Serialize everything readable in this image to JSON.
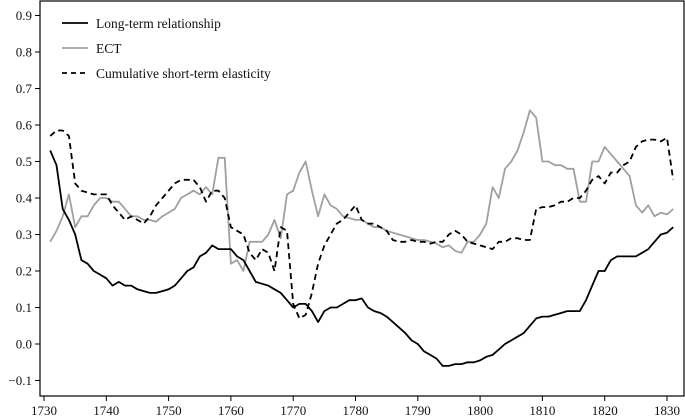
{
  "chart_data": {
    "type": "line",
    "title": "",
    "xlabel": "",
    "ylabel": "",
    "xlim": [
      1727,
      1833
    ],
    "ylim": [
      -0.14,
      0.94
    ],
    "grid": false,
    "legend_position": "upper left",
    "x_ticks": [
      1730,
      1740,
      1750,
      1760,
      1770,
      1780,
      1790,
      1800,
      1810,
      1820,
      1830
    ],
    "x_tick_labels": [
      "1730",
      "1740",
      "1750",
      "1760",
      "1770",
      "1780",
      "1790",
      "1800",
      "1810",
      "1820",
      "1830"
    ],
    "y_ticks": [
      -0.1,
      0.0,
      0.1,
      0.2,
      0.3,
      0.4,
      0.5,
      0.6,
      0.7,
      0.8,
      0.9
    ],
    "y_tick_labels": [
      "−0.1",
      "0.0",
      "0.1",
      "0.2",
      "0.3",
      "0.4",
      "0.5",
      "0.6",
      "0.7",
      "0.8",
      "0.9"
    ],
    "series": [
      {
        "name": "Long-term relationship",
        "style": "solid",
        "color": "#000000",
        "x": [
          1731,
          1732,
          1733,
          1734,
          1735,
          1736,
          1737,
          1738,
          1739,
          1740,
          1741,
          1742,
          1743,
          1744,
          1745,
          1746,
          1747,
          1748,
          1749,
          1750,
          1751,
          1752,
          1753,
          1754,
          1755,
          1756,
          1757,
          1758,
          1759,
          1760,
          1761,
          1762,
          1763,
          1764,
          1765,
          1766,
          1767,
          1768,
          1769,
          1770,
          1771,
          1772,
          1773,
          1774,
          1775,
          1776,
          1777,
          1778,
          1779,
          1780,
          1781,
          1782,
          1783,
          1784,
          1785,
          1786,
          1787,
          1788,
          1789,
          1790,
          1791,
          1792,
          1793,
          1794,
          1795,
          1796,
          1797,
          1798,
          1799,
          1800,
          1801,
          1802,
          1803,
          1804,
          1805,
          1806,
          1807,
          1808,
          1809,
          1810,
          1811,
          1812,
          1813,
          1814,
          1815,
          1816,
          1817,
          1818,
          1819,
          1820,
          1821,
          1822,
          1823,
          1824,
          1825,
          1826,
          1827,
          1828,
          1829,
          1830,
          1831
        ],
        "values": [
          0.53,
          0.49,
          0.37,
          0.34,
          0.3,
          0.23,
          0.22,
          0.2,
          0.19,
          0.18,
          0.16,
          0.17,
          0.16,
          0.16,
          0.15,
          0.145,
          0.14,
          0.14,
          0.145,
          0.15,
          0.16,
          0.18,
          0.2,
          0.21,
          0.24,
          0.25,
          0.27,
          0.26,
          0.26,
          0.26,
          0.24,
          0.23,
          0.2,
          0.17,
          0.165,
          0.16,
          0.15,
          0.14,
          0.12,
          0.1,
          0.11,
          0.11,
          0.09,
          0.06,
          0.09,
          0.1,
          0.1,
          0.11,
          0.12,
          0.12,
          0.125,
          0.1,
          0.09,
          0.085,
          0.075,
          0.06,
          0.045,
          0.03,
          0.01,
          0.0,
          -0.02,
          -0.03,
          -0.04,
          -0.06,
          -0.06,
          -0.055,
          -0.055,
          -0.05,
          -0.05,
          -0.045,
          -0.035,
          -0.03,
          -0.015,
          0.0,
          0.01,
          0.02,
          0.03,
          0.05,
          0.07,
          0.075,
          0.075,
          0.08,
          0.085,
          0.09,
          0.09,
          0.09,
          0.12,
          0.16,
          0.2,
          0.2,
          0.23,
          0.24,
          0.24,
          0.24,
          0.24,
          0.25,
          0.26,
          0.28,
          0.3,
          0.305,
          0.32
        ]
      },
      {
        "name": "ECT",
        "style": "solid",
        "color": "#a0a0a0",
        "x": [
          1731,
          1732,
          1733,
          1734,
          1735,
          1736,
          1737,
          1738,
          1739,
          1740,
          1741,
          1742,
          1743,
          1744,
          1745,
          1746,
          1747,
          1748,
          1749,
          1750,
          1751,
          1752,
          1753,
          1754,
          1755,
          1756,
          1757,
          1758,
          1759,
          1760,
          1761,
          1762,
          1763,
          1764,
          1765,
          1766,
          1767,
          1768,
          1769,
          1770,
          1771,
          1772,
          1773,
          1774,
          1775,
          1776,
          1777,
          1778,
          1779,
          1780,
          1781,
          1782,
          1783,
          1784,
          1785,
          1786,
          1787,
          1788,
          1789,
          1790,
          1791,
          1792,
          1793,
          1794,
          1795,
          1796,
          1797,
          1798,
          1799,
          1800,
          1801,
          1802,
          1803,
          1804,
          1805,
          1806,
          1807,
          1808,
          1809,
          1810,
          1811,
          1812,
          1813,
          1814,
          1815,
          1816,
          1817,
          1818,
          1819,
          1820,
          1821,
          1822,
          1823,
          1824,
          1825,
          1826,
          1827,
          1828,
          1829,
          1830,
          1831
        ],
        "values": [
          0.28,
          0.31,
          0.35,
          0.41,
          0.32,
          0.35,
          0.35,
          0.38,
          0.4,
          0.4,
          0.39,
          0.39,
          0.37,
          0.35,
          0.35,
          0.34,
          0.34,
          0.335,
          0.35,
          0.36,
          0.37,
          0.4,
          0.41,
          0.42,
          0.41,
          0.43,
          0.41,
          0.51,
          0.51,
          0.22,
          0.23,
          0.2,
          0.28,
          0.28,
          0.28,
          0.3,
          0.34,
          0.29,
          0.41,
          0.42,
          0.47,
          0.5,
          0.42,
          0.35,
          0.41,
          0.38,
          0.37,
          0.35,
          0.345,
          0.34,
          0.34,
          0.33,
          0.32,
          0.32,
          0.31,
          0.305,
          0.3,
          0.295,
          0.29,
          0.285,
          0.285,
          0.28,
          0.275,
          0.265,
          0.27,
          0.255,
          0.25,
          0.28,
          0.28,
          0.3,
          0.33,
          0.43,
          0.4,
          0.48,
          0.5,
          0.53,
          0.58,
          0.64,
          0.62,
          0.5,
          0.5,
          0.49,
          0.49,
          0.48,
          0.48,
          0.39,
          0.39,
          0.5,
          0.5,
          0.54,
          0.52,
          0.5,
          0.48,
          0.46,
          0.38,
          0.36,
          0.38,
          0.35,
          0.36,
          0.355,
          0.37
        ]
      },
      {
        "name": "Cumulative short-term elasticity",
        "style": "dashed",
        "color": "#000000",
        "x": [
          1731,
          1732,
          1733,
          1734,
          1735,
          1736,
          1737,
          1738,
          1739,
          1740,
          1741,
          1742,
          1743,
          1744,
          1745,
          1746,
          1747,
          1748,
          1749,
          1750,
          1751,
          1752,
          1753,
          1754,
          1755,
          1756,
          1757,
          1758,
          1759,
          1760,
          1761,
          1762,
          1763,
          1764,
          1765,
          1766,
          1767,
          1768,
          1769,
          1770,
          1771,
          1772,
          1773,
          1774,
          1775,
          1776,
          1777,
          1778,
          1779,
          1780,
          1781,
          1782,
          1783,
          1784,
          1785,
          1786,
          1787,
          1788,
          1789,
          1790,
          1791,
          1792,
          1793,
          1794,
          1795,
          1796,
          1797,
          1798,
          1799,
          1800,
          1801,
          1802,
          1803,
          1804,
          1805,
          1806,
          1807,
          1808,
          1809,
          1810,
          1811,
          1812,
          1813,
          1814,
          1815,
          1816,
          1817,
          1818,
          1819,
          1820,
          1821,
          1822,
          1823,
          1824,
          1825,
          1826,
          1827,
          1828,
          1829,
          1830,
          1831
        ],
        "values": [
          0.57,
          0.585,
          0.585,
          0.57,
          0.44,
          0.42,
          0.415,
          0.41,
          0.41,
          0.41,
          0.38,
          0.36,
          0.34,
          0.35,
          0.34,
          0.33,
          0.35,
          0.38,
          0.4,
          0.42,
          0.44,
          0.45,
          0.45,
          0.45,
          0.43,
          0.39,
          0.42,
          0.42,
          0.4,
          0.32,
          0.31,
          0.3,
          0.25,
          0.23,
          0.26,
          0.25,
          0.2,
          0.32,
          0.31,
          0.11,
          0.07,
          0.08,
          0.14,
          0.22,
          0.27,
          0.3,
          0.33,
          0.34,
          0.36,
          0.38,
          0.34,
          0.33,
          0.33,
          0.32,
          0.31,
          0.285,
          0.28,
          0.28,
          0.285,
          0.28,
          0.28,
          0.275,
          0.28,
          0.28,
          0.3,
          0.31,
          0.3,
          0.28,
          0.275,
          0.27,
          0.265,
          0.26,
          0.28,
          0.28,
          0.29,
          0.29,
          0.285,
          0.285,
          0.37,
          0.375,
          0.375,
          0.38,
          0.39,
          0.39,
          0.4,
          0.4,
          0.42,
          0.45,
          0.46,
          0.44,
          0.47,
          0.47,
          0.49,
          0.5,
          0.54,
          0.555,
          0.56,
          0.56,
          0.555,
          0.565,
          0.45
        ]
      }
    ]
  }
}
